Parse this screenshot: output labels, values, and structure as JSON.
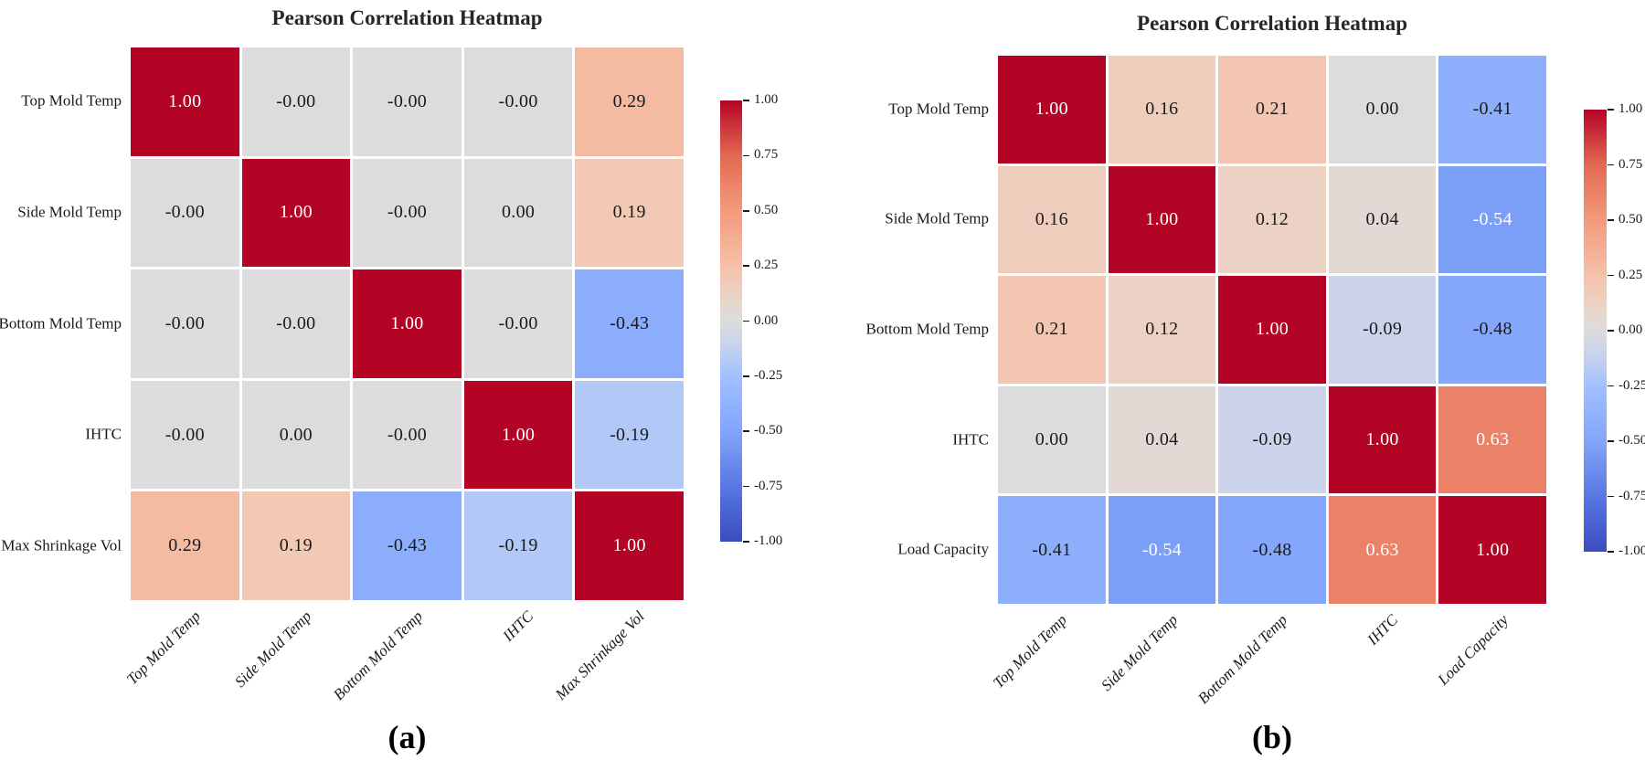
{
  "chart_data": {
    "type": "heatmap",
    "colormap": "coolwarm",
    "vmin": -1.0,
    "vmax": 1.0,
    "grid": false,
    "legend_position": "right-colorbar",
    "colorbar_tick_labels": [
      "1.00",
      "0.75",
      "0.50",
      "0.25",
      "0.00",
      "-0.25",
      "-0.50",
      "-0.75",
      "-1.00"
    ],
    "colormap_anchors": [
      {
        "t": 0.0,
        "color": "#3b4cc0"
      },
      {
        "t": 0.125,
        "color": "#5977e3"
      },
      {
        "t": 0.25,
        "color": "#82a5fb"
      },
      {
        "t": 0.375,
        "color": "#a2c0fe"
      },
      {
        "t": 0.4375,
        "color": "#c4d1ef"
      },
      {
        "t": 0.5,
        "color": "#dddcdc"
      },
      {
        "t": 0.5625,
        "color": "#ecd2c3"
      },
      {
        "t": 0.625,
        "color": "#f5c1a9"
      },
      {
        "t": 0.75,
        "color": "#f49a7b"
      },
      {
        "t": 0.875,
        "color": "#e26952"
      },
      {
        "t": 1.0,
        "color": "#b40426"
      }
    ],
    "annotation_colors": {
      "light": "#ffffff",
      "dark": "#1a1a1a"
    },
    "panels": [
      {
        "caption": "(a)",
        "title": "Pearson Correlation Heatmap",
        "variables": [
          "Top Mold Temp",
          "Side Mold Temp",
          "Bottom Mold Temp",
          "IHTC",
          "Max Shrinkage Vol"
        ],
        "values": [
          [
            "1.00",
            "-0.00",
            "-0.00",
            "-0.00",
            "0.29"
          ],
          [
            "-0.00",
            "1.00",
            "-0.00",
            "0.00",
            "0.19"
          ],
          [
            "-0.00",
            "-0.00",
            "1.00",
            "-0.00",
            "-0.43"
          ],
          [
            "-0.00",
            "0.00",
            "-0.00",
            "1.00",
            "-0.19"
          ],
          [
            "0.29",
            "0.19",
            "-0.43",
            "-0.19",
            "1.00"
          ]
        ]
      },
      {
        "caption": "(b)",
        "title": "Pearson Correlation Heatmap",
        "variables": [
          "Top Mold Temp",
          "Side Mold Temp",
          "Bottom Mold Temp",
          "IHTC",
          "Load Capacity"
        ],
        "values": [
          [
            "1.00",
            "0.16",
            "0.21",
            "0.00",
            "-0.41"
          ],
          [
            "0.16",
            "1.00",
            "0.12",
            "0.04",
            "-0.54"
          ],
          [
            "0.21",
            "0.12",
            "1.00",
            "-0.09",
            "-0.48"
          ],
          [
            "0.00",
            "0.04",
            "-0.09",
            "1.00",
            "0.63"
          ],
          [
            "-0.41",
            "-0.54",
            "-0.48",
            "0.63",
            "1.00"
          ]
        ]
      }
    ]
  }
}
